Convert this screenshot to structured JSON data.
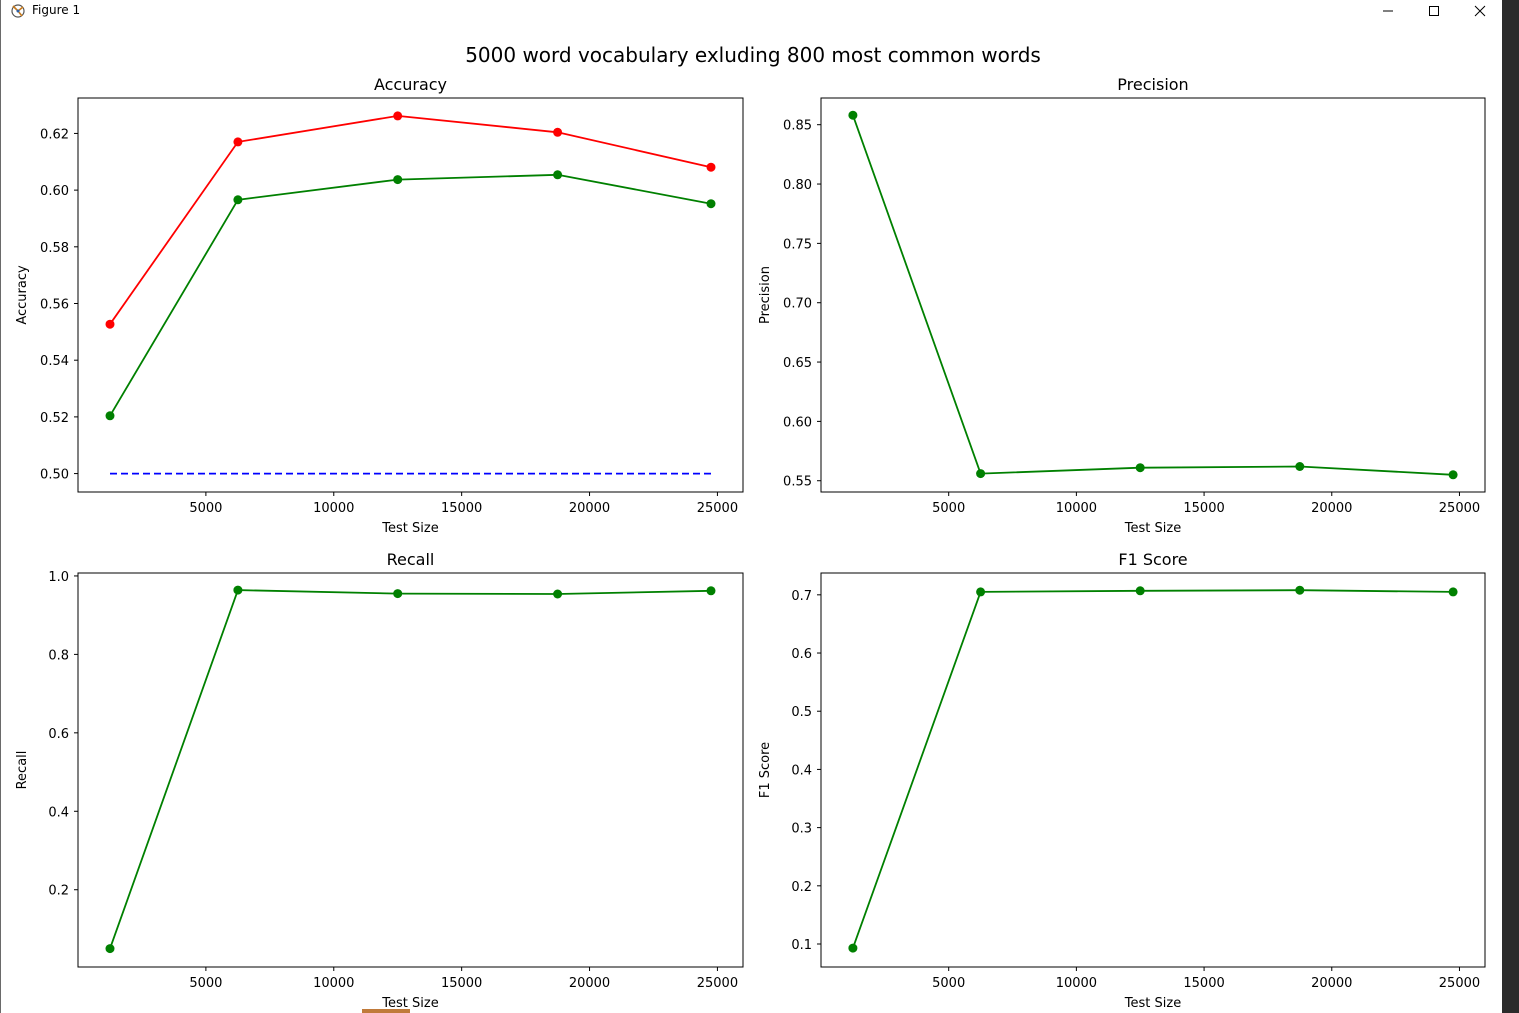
{
  "window": {
    "title": "Figure 1"
  },
  "figure": {
    "suptitle": "5000 word vocabulary exluding 800 most common words"
  },
  "colors": {
    "series_red": "#ff0000",
    "series_green": "#008000",
    "baseline_blue": "#0000ff"
  },
  "icons": {
    "app": "matplotlib-figure-icon",
    "minimize": "minimize-icon",
    "maximize": "maximize-icon",
    "close": "close-icon"
  },
  "chart_data": [
    {
      "type": "line",
      "title": "Accuracy",
      "xlabel": "Test Size",
      "ylabel": "Accuracy",
      "x": [
        1250,
        6250,
        12500,
        18750,
        24750
      ],
      "xlim": [
        0,
        26000
      ],
      "xticks": [
        5000,
        10000,
        15000,
        20000,
        25000
      ],
      "ylim": [
        0.4935,
        0.6325
      ],
      "yticks": [
        0.5,
        0.52,
        0.54,
        0.56,
        0.58,
        0.6,
        0.62
      ],
      "ytick_labels": [
        "0.50",
        "0.52",
        "0.54",
        "0.56",
        "0.58",
        "0.60",
        "0.62"
      ],
      "series": [
        {
          "color": "#ff0000",
          "marker": true,
          "values": [
            0.5527,
            0.617,
            0.6262,
            0.6204,
            0.6081
          ]
        },
        {
          "color": "#008000",
          "marker": true,
          "values": [
            0.5204,
            0.5966,
            0.6037,
            0.6054,
            0.5952
          ]
        },
        {
          "color": "#0000ff",
          "marker": false,
          "dashed": true,
          "values": [
            0.5,
            0.5,
            0.5,
            0.5,
            0.5
          ]
        }
      ]
    },
    {
      "type": "line",
      "title": "Precision",
      "xlabel": "Test Size",
      "ylabel": "Precision",
      "x": [
        1250,
        6250,
        12500,
        18750,
        24750
      ],
      "xlim": [
        0,
        26000
      ],
      "xticks": [
        5000,
        10000,
        15000,
        20000,
        25000
      ],
      "ylim": [
        0.5405,
        0.8725
      ],
      "yticks": [
        0.55,
        0.6,
        0.65,
        0.7,
        0.75,
        0.8,
        0.85
      ],
      "ytick_labels": [
        "0.55",
        "0.60",
        "0.65",
        "0.70",
        "0.75",
        "0.80",
        "0.85"
      ],
      "series": [
        {
          "color": "#008000",
          "marker": true,
          "values": [
            0.858,
            0.556,
            0.561,
            0.562,
            0.555
          ]
        }
      ]
    },
    {
      "type": "line",
      "title": "Recall",
      "xlabel": "Test Size",
      "ylabel": "Recall",
      "x": [
        1250,
        6250,
        12500,
        18750,
        24750
      ],
      "xlim": [
        0,
        26000
      ],
      "xticks": [
        5000,
        10000,
        15000,
        20000,
        25000
      ],
      "ylim": [
        0.003,
        1.0075
      ],
      "yticks": [
        0.2,
        0.4,
        0.6,
        0.8,
        1.0
      ],
      "ytick_labels": [
        "0.2",
        "0.4",
        "0.6",
        "0.8",
        "1.0"
      ],
      "series": [
        {
          "color": "#008000",
          "marker": true,
          "values": [
            0.05,
            0.964,
            0.955,
            0.954,
            0.962
          ]
        }
      ]
    },
    {
      "type": "line",
      "title": "F1 Score",
      "xlabel": "Test Size",
      "ylabel": "F1 Score",
      "x": [
        1250,
        6250,
        12500,
        18750,
        24750
      ],
      "xlim": [
        0,
        26000
      ],
      "xticks": [
        5000,
        10000,
        15000,
        20000,
        25000
      ],
      "ylim": [
        0.0605,
        0.7375
      ],
      "yticks": [
        0.1,
        0.2,
        0.3,
        0.4,
        0.5,
        0.6,
        0.7
      ],
      "ytick_labels": [
        "0.1",
        "0.2",
        "0.3",
        "0.4",
        "0.5",
        "0.6",
        "0.7"
      ],
      "series": [
        {
          "color": "#008000",
          "marker": true,
          "values": [
            0.093,
            0.705,
            0.707,
            0.708,
            0.705
          ]
        }
      ]
    }
  ]
}
